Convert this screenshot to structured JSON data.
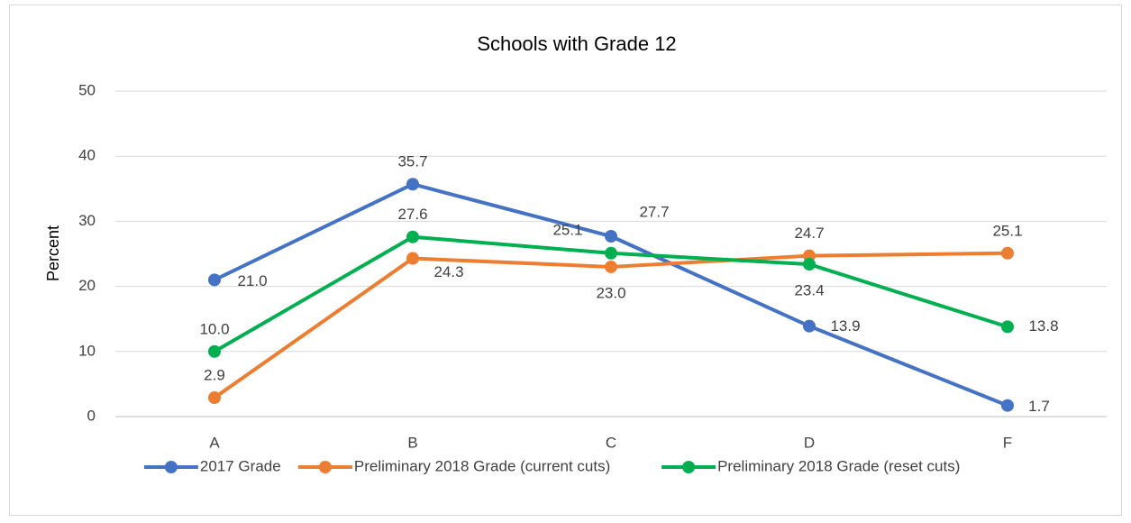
{
  "chart_data": {
    "type": "line",
    "title": "Schools with Grade 12",
    "y_label": "Percent",
    "categories": [
      "A",
      "B",
      "C",
      "D",
      "F"
    ],
    "series": [
      {
        "name": "2017 Grade",
        "color": "#4472c4",
        "values": [
          21.0,
          35.7,
          27.7,
          13.9,
          1.7
        ],
        "value_labels": [
          "21.0",
          "35.7",
          "27.7",
          "13.9",
          "1.7"
        ]
      },
      {
        "name": "Preliminary 2018 Grade (current cuts)",
        "color": "#ed7d31",
        "values": [
          2.9,
          24.3,
          23.0,
          24.7,
          25.1
        ],
        "value_labels": [
          "2.9",
          "24.3",
          "23.0",
          "24.7",
          "25.1"
        ]
      },
      {
        "name": "Preliminary 2018 Grade (reset cuts)",
        "color": "#00b050",
        "values": [
          10.0,
          27.6,
          25.1,
          23.4,
          13.8
        ],
        "value_labels": [
          "10.0",
          "27.6",
          "25.1",
          "23.4",
          "13.8"
        ]
      }
    ],
    "ylim": [
      0,
      50
    ],
    "yticks": [
      0,
      10,
      20,
      30,
      40,
      50
    ],
    "grid": true,
    "legend": "bottom"
  }
}
